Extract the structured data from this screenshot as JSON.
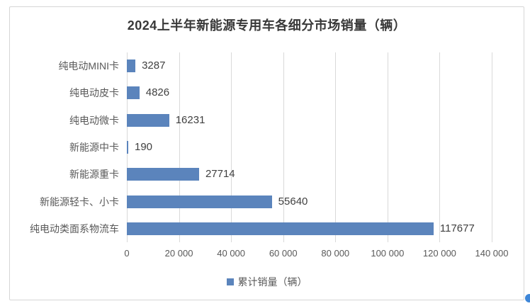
{
  "chart": {
    "colors": {
      "bar": "#5b84bc",
      "gridline": "#d9d9d9",
      "border": "#d6d6d6",
      "title_text": "#383838",
      "label_text": "#595959",
      "value_text": "#404040",
      "logo_blue": "#3d86d8"
    }
  },
  "chart_data": {
    "type": "bar",
    "orientation": "horizontal",
    "title": "2024上半年新能源专用车各细分市场销量（辆）",
    "categories": [
      "纯电动MINI卡",
      "纯电动皮卡",
      "纯电动微卡",
      "新能源中卡",
      "新能源重卡",
      "新能源轻卡、小卡",
      "纯电动类面系物流车"
    ],
    "values": [
      3287,
      4826,
      16231,
      190,
      27714,
      55640,
      117677
    ],
    "series": [
      {
        "name": "累计销量（辆）",
        "values": [
          3287,
          4826,
          16231,
          190,
          27714,
          55640,
          117677
        ]
      }
    ],
    "xlim": [
      0,
      140000
    ],
    "x_ticks": [
      0,
      20000,
      40000,
      60000,
      80000,
      100000,
      120000,
      140000
    ],
    "x_tick_labels": [
      "0",
      "20 000",
      "40 000",
      "60 000",
      "80 000",
      "100 000",
      "120 000",
      "140 000"
    ],
    "xlabel": "",
    "ylabel": "",
    "grid": "vertical",
    "legend": [
      "累计销量（辆）"
    ],
    "legend_position": "bottom",
    "data_labels": "outside-end"
  }
}
